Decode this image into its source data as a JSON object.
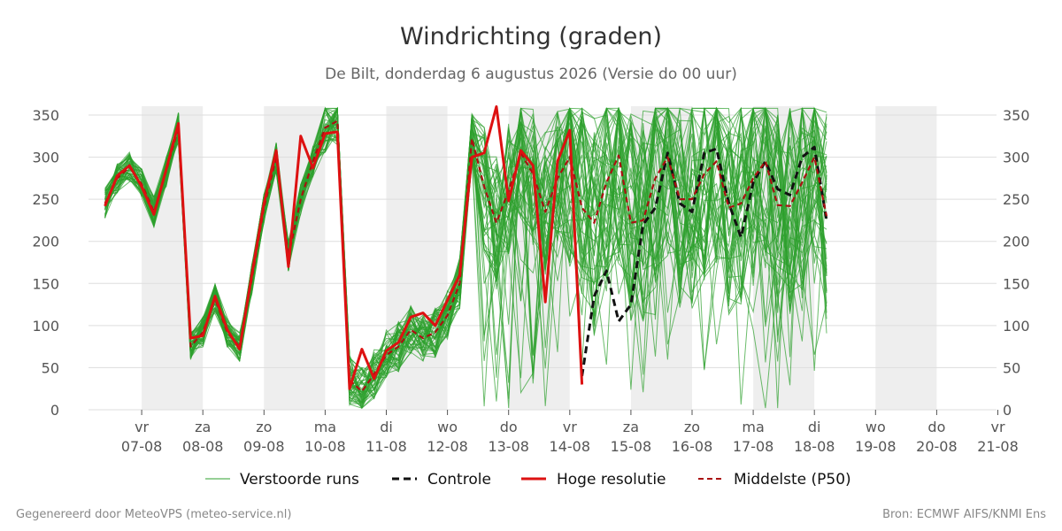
{
  "chart_data": {
    "type": "line",
    "title": "Windrichting (graden)",
    "subtitle": "De Bilt, donderdag  6 augustus 2026 (Versie do 00 uur)",
    "ylim": [
      0,
      360
    ],
    "yticks": [
      0,
      50,
      100,
      150,
      200,
      250,
      300,
      350
    ],
    "x_start": "2026-08-06",
    "x_end": "2026-08-21",
    "x_ticks": [
      {
        "day": "vr",
        "date": "07-08"
      },
      {
        "day": "za",
        "date": "08-08"
      },
      {
        "day": "zo",
        "date": "09-08"
      },
      {
        "day": "ma",
        "date": "10-08"
      },
      {
        "day": "di",
        "date": "11-08"
      },
      {
        "day": "wo",
        "date": "12-08"
      },
      {
        "day": "do",
        "date": "13-08"
      },
      {
        "day": "vr",
        "date": "14-08"
      },
      {
        "day": "za",
        "date": "15-08"
      },
      {
        "day": "zo",
        "date": "16-08"
      },
      {
        "day": "ma",
        "date": "17-08"
      },
      {
        "day": "di",
        "date": "18-08"
      },
      {
        "day": "wo",
        "date": "19-08"
      },
      {
        "day": "do",
        "date": "20-08"
      },
      {
        "day": "vr",
        "date": "21-08"
      }
    ],
    "weekend_shading": [
      [
        "07-08",
        "08-08"
      ],
      [
        "09-08",
        "10-08"
      ],
      [
        "11-08",
        "12-08"
      ],
      [
        "13-08",
        "14-08"
      ],
      [
        "15-08",
        "16-08"
      ],
      [
        "17-08",
        "18-08"
      ],
      [
        "19-08",
        "20-08"
      ]
    ],
    "legend": {
      "placement": "bottom",
      "items": [
        "Verstoorde runs",
        "Controle",
        "Hoge resolutie",
        "Middelste (P50)"
      ]
    },
    "colors": {
      "ensemble": "#2ca02c",
      "control": "#111111",
      "high_res": "#dd1111",
      "median": "#aa1111",
      "shade": "#eeeeee",
      "grid": "#dddddd"
    },
    "ensemble_members": 50,
    "series": [
      {
        "name": "Hoge resolutie",
        "style": "solid",
        "x": [
          0.4,
          0.6,
          0.8,
          1.0,
          1.2,
          1.4,
          1.6,
          1.8,
          2.0,
          2.2,
          2.4,
          2.6,
          2.8,
          3.0,
          3.2,
          3.4,
          3.6,
          3.8,
          4.0,
          4.2,
          4.4,
          4.6,
          4.8,
          5.0,
          5.2,
          5.4,
          5.6,
          5.8,
          6.0,
          6.2,
          6.4,
          6.6,
          6.8,
          7.0,
          7.2,
          7.4,
          7.6,
          7.8,
          8.0,
          8.2,
          8.4,
          8.6,
          8.8,
          9.0,
          9.2,
          9.4,
          9.6,
          9.8,
          10.0
        ],
        "values": [
          242,
          278,
          290,
          265,
          232,
          285,
          340,
          85,
          88,
          135,
          95,
          72,
          160,
          245,
          308,
          170,
          325,
          287,
          328,
          330,
          25,
          72,
          37,
          70,
          80,
          110,
          115,
          100,
          130,
          160,
          300,
          305,
          360,
          248,
          308,
          290,
          128,
          295,
          332,
          30,
          null,
          null,
          null,
          null,
          null,
          null,
          null,
          null,
          null
        ]
      },
      {
        "name": "Controle",
        "style": "dashed",
        "x": [
          0.4,
          0.6,
          0.8,
          1.0,
          1.2,
          1.4,
          1.6,
          1.8,
          2.0,
          2.2,
          2.4,
          2.6,
          2.8,
          3.0,
          3.2,
          3.4,
          3.6,
          3.8,
          4.0,
          4.2,
          4.4,
          4.6,
          4.8,
          5.0,
          5.2,
          5.4,
          5.6,
          5.8,
          6.0,
          6.2,
          6.4,
          6.6,
          6.8,
          7.0,
          7.2,
          7.4,
          7.6,
          7.8,
          8.0,
          8.2,
          8.4,
          8.6,
          8.8,
          9.0,
          9.2,
          9.4,
          9.6,
          9.8,
          10.0,
          10.2,
          10.4,
          10.6,
          10.8,
          11.0,
          11.2,
          11.4,
          11.6,
          11.8,
          12.0,
          12.2,
          12.4,
          12.6,
          12.8,
          13.0,
          13.2,
          13.4,
          13.6,
          13.8,
          14.0
        ],
        "values": [
          null,
          null,
          null,
          null,
          null,
          null,
          null,
          null,
          null,
          null,
          null,
          null,
          null,
          null,
          null,
          null,
          null,
          null,
          null,
          null,
          null,
          null,
          null,
          null,
          null,
          null,
          null,
          null,
          null,
          null,
          null,
          null,
          null,
          null,
          null,
          null,
          null,
          null,
          null,
          40,
          135,
          165,
          105,
          125,
          220,
          240,
          305,
          245,
          235,
          305,
          310,
          245,
          205,
          270,
          295,
          262,
          255,
          300,
          312,
          225,
          null,
          null,
          null,
          null,
          null,
          null,
          null,
          null,
          null
        ]
      },
      {
        "name": "Middelste (P50)",
        "style": "dashed",
        "x": [
          0.4,
          0.6,
          0.8,
          1.0,
          1.2,
          1.4,
          1.6,
          1.8,
          2.0,
          2.2,
          2.4,
          2.6,
          2.8,
          3.0,
          3.2,
          3.4,
          3.6,
          3.8,
          4.0,
          4.2,
          4.4,
          4.6,
          4.8,
          5.0,
          5.2,
          5.4,
          5.6,
          5.8,
          6.0,
          6.2,
          6.4,
          6.6,
          6.8,
          7.0,
          7.2,
          7.4,
          7.6,
          7.8,
          8.0,
          8.2,
          8.4,
          8.6,
          8.8,
          9.0,
          9.2,
          9.4,
          9.6,
          9.8,
          10.0,
          10.2,
          10.4,
          10.6,
          10.8,
          11.0,
          11.2,
          11.4,
          11.6,
          11.8,
          12.0,
          12.2,
          12.4,
          12.6,
          12.8,
          13.0,
          13.2,
          13.4,
          13.6,
          13.8,
          14.0
        ],
        "values": [
          245,
          275,
          288,
          268,
          235,
          283,
          335,
          75,
          92,
          132,
          92,
          75,
          155,
          240,
          300,
          182,
          250,
          295,
          335,
          343,
          35,
          22,
          42,
          65,
          75,
          95,
          85,
          92,
          112,
          150,
          322,
          265,
          222,
          260,
          305,
          280,
          235,
          275,
          300,
          240,
          222,
          270,
          302,
          222,
          225,
          275,
          300,
          250,
          250,
          280,
          295,
          240,
          245,
          275,
          295,
          243,
          242,
          270,
          300,
          230,
          null,
          null,
          null,
          null,
          null,
          null,
          null,
          null,
          null
        ]
      }
    ]
  },
  "footer": {
    "left": "Gegenereerd door MeteoVPS (meteo-service.nl)",
    "right": "Bron: ECMWF AIFS/KNMI Ens"
  }
}
